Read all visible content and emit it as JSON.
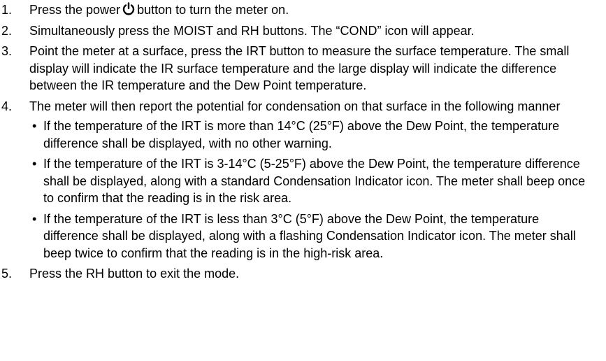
{
  "steps": [
    {
      "number": "1.",
      "text_before": "Press the power",
      "text_after": "button to turn the meter on."
    },
    {
      "number": "2.",
      "text": "Simultaneously press the MOIST and RH buttons. The “COND” icon will appear."
    },
    {
      "number": "3.",
      "text": "Point the meter at a surface, press the IRT button to measure the surface temperature. The small display will indicate the IR surface temperature and the large display will indicate the difference between the IR temperature and the Dew Point temperature."
    },
    {
      "number": "4.",
      "text": "The meter will then report the potential for condensation on that surface in the following manner",
      "bullets": [
        "If the temperature of the IRT is more than 14°C (25°F) above the Dew Point, the temperature difference shall be displayed, with no other warning.",
        "If the temperature of the IRT is 3-14°C (5-25°F) above the Dew Point, the temperature difference shall be displayed, along with a standard Condensation Indicator icon.  The meter shall beep once to confirm that the reading is in the risk area.",
        "If the temperature of the IRT is less than 3°C (5°F) above the Dew Point, the temperature difference shall be displayed, along with a flashing Condensation Indicator icon.  The meter shall beep twice to confirm that the reading is in the high-risk area."
      ]
    },
    {
      "number": "5.",
      "text": "Press the RH button to exit the mode."
    }
  ]
}
